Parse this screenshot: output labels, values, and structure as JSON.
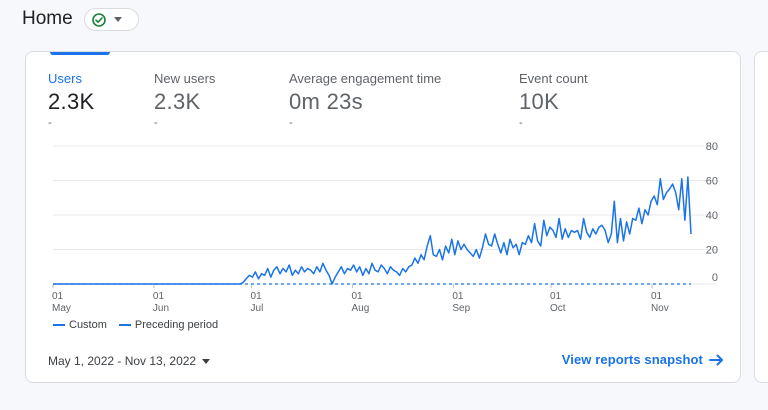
{
  "page": {
    "title": "Home"
  },
  "colors": {
    "accent": "#1a73e8",
    "status_ok": "#188038"
  },
  "status_chip": {
    "icon": "check-circle-icon",
    "dropdown_icon": "caret-down-icon"
  },
  "metrics": [
    {
      "label": "Users",
      "value": "2.3K",
      "delta": "-",
      "active": true
    },
    {
      "label": "New users",
      "value": "2.3K",
      "delta": "-",
      "active": false
    },
    {
      "label": "Average engagement time",
      "value": "0m 23s",
      "delta": "-",
      "active": false
    },
    {
      "label": "Event count",
      "value": "10K",
      "delta": "-",
      "active": false
    }
  ],
  "legend": {
    "custom": "Custom",
    "preceding": "Preceding period"
  },
  "date_range": {
    "label": "May 1, 2022 - Nov 13, 2022"
  },
  "snapshot_link": {
    "label": "View reports snapshot"
  },
  "chart_data": {
    "type": "line",
    "x_start": "2022-05-01",
    "x_end": "2022-11-13",
    "x_ticks": [
      {
        "day": "01",
        "month": "May"
      },
      {
        "day": "01",
        "month": "Jun"
      },
      {
        "day": "01",
        "month": "Jul"
      },
      {
        "day": "01",
        "month": "Aug"
      },
      {
        "day": "01",
        "month": "Sep"
      },
      {
        "day": "01",
        "month": "Oct"
      },
      {
        "day": "01",
        "month": "Nov"
      }
    ],
    "y_ticks": [
      "80",
      "60",
      "40",
      "20",
      "0"
    ],
    "ylim": [
      0,
      80
    ],
    "grid": true,
    "series": [
      {
        "name": "Custom",
        "style": "solid",
        "values": [
          0,
          0,
          0,
          0,
          0,
          0,
          0,
          0,
          0,
          0,
          0,
          0,
          0,
          0,
          0,
          0,
          0,
          0,
          0,
          0,
          0,
          0,
          0,
          0,
          0,
          0,
          0,
          0,
          0,
          0,
          0,
          0,
          0,
          0,
          0,
          0,
          0,
          0,
          0,
          0,
          0,
          0,
          0,
          0,
          0,
          0,
          0,
          0,
          0,
          0,
          0,
          0,
          0,
          0,
          0,
          0,
          0,
          0,
          0,
          0,
          0,
          0,
          1,
          3,
          5,
          4,
          7,
          3,
          6,
          5,
          9,
          4,
          8,
          10,
          6,
          9,
          7,
          11,
          5,
          8,
          6,
          10,
          7,
          9,
          8,
          6,
          10,
          7,
          12,
          8,
          5,
          0,
          4,
          7,
          10,
          6,
          9,
          8,
          11,
          7,
          10,
          5,
          9,
          6,
          12,
          8,
          7,
          11,
          9,
          6,
          10,
          8,
          7,
          5,
          9,
          7,
          10,
          11,
          15,
          12,
          17,
          14,
          22,
          28,
          17,
          16,
          20,
          14,
          22,
          18,
          26,
          17,
          25,
          20,
          23,
          20,
          18,
          16,
          20,
          15,
          21,
          29,
          23,
          22,
          29,
          23,
          18,
          24,
          17,
          26,
          21,
          23,
          17,
          24,
          23,
          28,
          24,
          35,
          25,
          22,
          37,
          28,
          33,
          31,
          27,
          38,
          26,
          32,
          27,
          31,
          30,
          31,
          26,
          38,
          30,
          27,
          32,
          29,
          33,
          34,
          31,
          24,
          29,
          48,
          24,
          38,
          25,
          36,
          29,
          38,
          37,
          44,
          35,
          43,
          40,
          48,
          51,
          46,
          61,
          49,
          53,
          55,
          58,
          53,
          43,
          61,
          37,
          62,
          29
        ]
      },
      {
        "name": "Preceding period",
        "style": "dashed",
        "values": [
          0
        ]
      }
    ]
  }
}
